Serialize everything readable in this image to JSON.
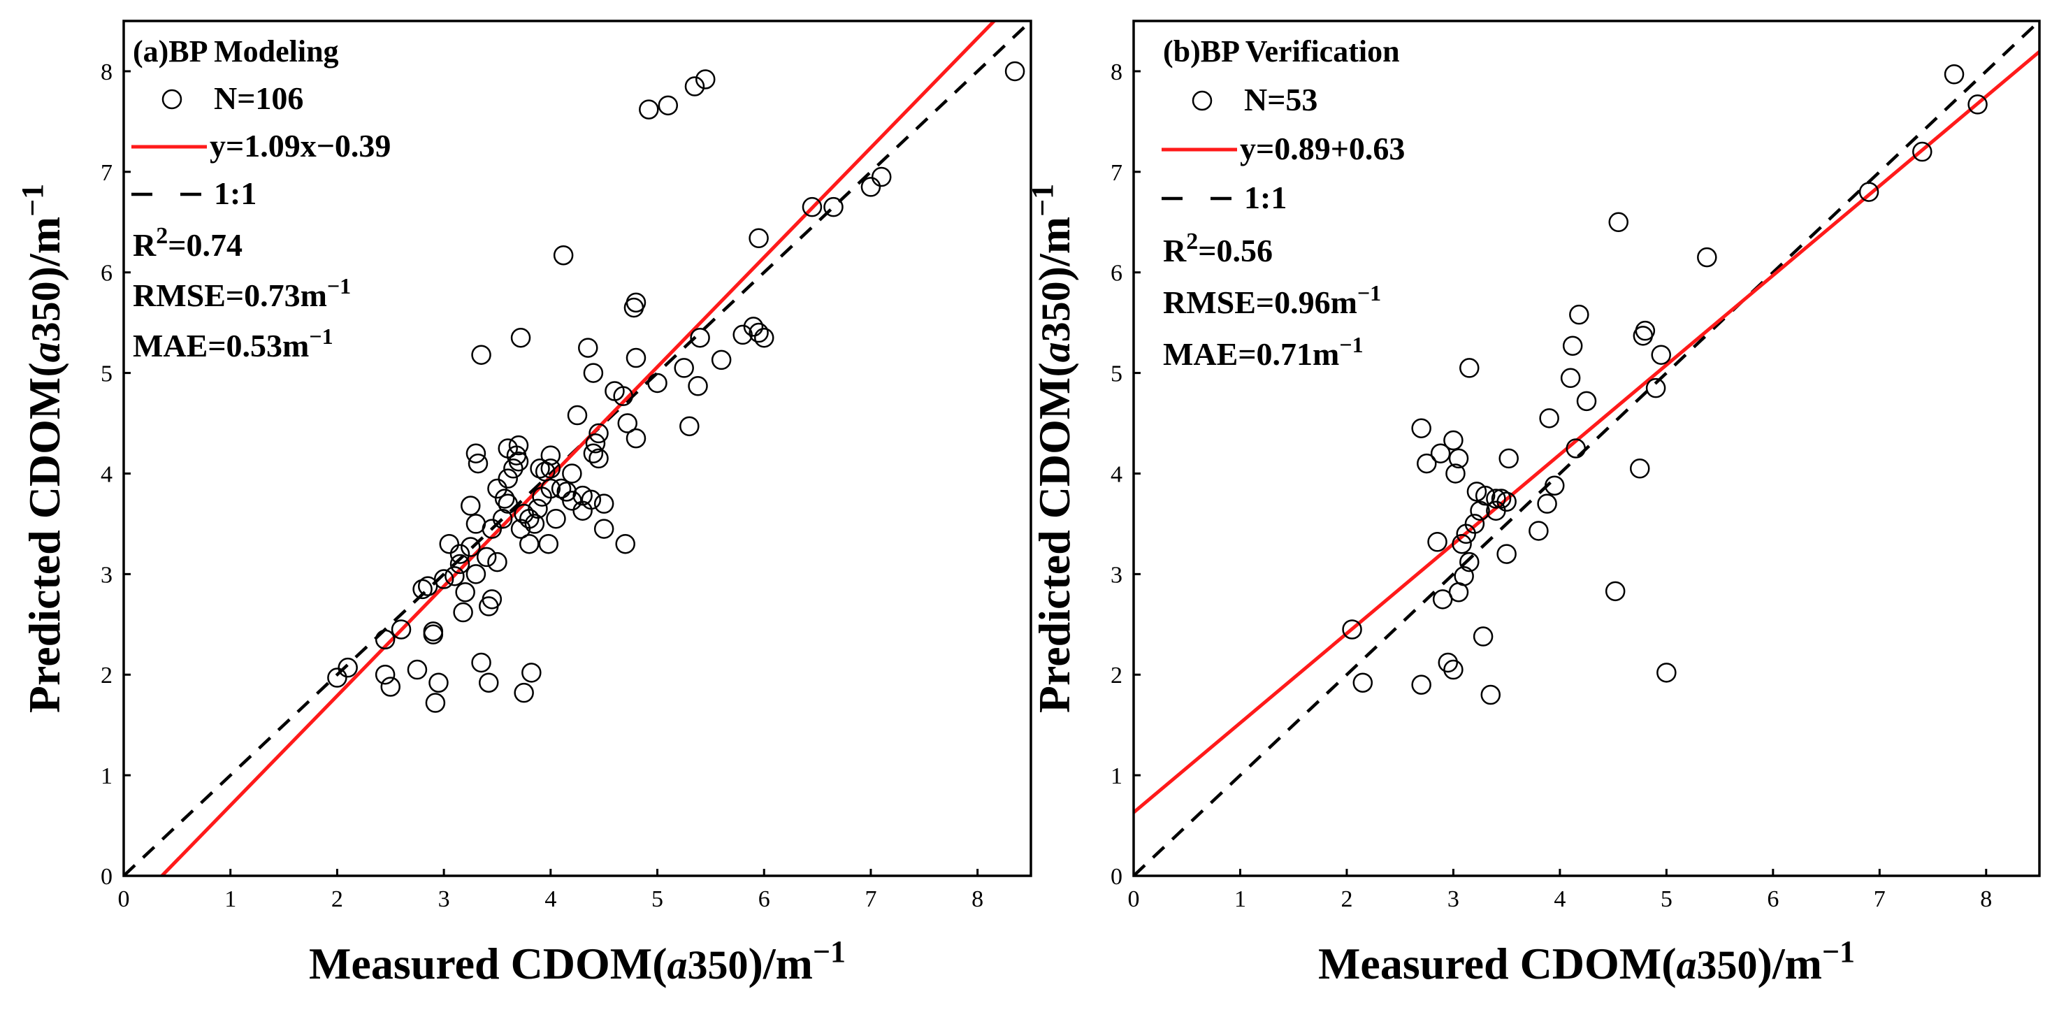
{
  "chart_data": [
    {
      "type": "scatter",
      "panel_label": "(a)BP Modeling",
      "xlabel": "Measured CDOM(a350)/m⁻¹",
      "ylabel": "Predicted CDOM(a350)/m⁻¹",
      "xlabel_parts": {
        "pre": "Measured CDOM(",
        "ital": "a",
        "num": "350",
        "post": ")/m",
        "sup": "−1"
      },
      "ylabel_parts": {
        "pre": "Predicted CDOM(",
        "ital": "a",
        "num": "350",
        "post": ")/m",
        "sup": "−1"
      },
      "xlim": [
        0,
        8.5
      ],
      "ylim": [
        0,
        8.5
      ],
      "xticks": [
        0,
        1,
        2,
        3,
        4,
        5,
        6,
        7,
        8
      ],
      "yticks": [
        0,
        1,
        2,
        3,
        4,
        5,
        6,
        7,
        8
      ],
      "legend": {
        "points": "N=106",
        "fit": "y=1.09x−0.39",
        "identity": "1:1"
      },
      "stats": {
        "r2_base": "R",
        "r2_sup": "2",
        "r2_val": "=0.74",
        "rmse_base": "RMSE=0.73m",
        "rmse_sup": "−1",
        "mae_base": "MAE=0.53m",
        "mae_sup": "−1"
      },
      "fit": {
        "slope": 1.09,
        "intercept": -0.39
      },
      "colors": {
        "fit": "#ff1a1a",
        "identity": "#000000",
        "marker": "#000000"
      },
      "points": [
        [
          2.0,
          1.97
        ],
        [
          2.1,
          2.07
        ],
        [
          2.45,
          2.35
        ],
        [
          2.45,
          2.0
        ],
        [
          2.5,
          1.88
        ],
        [
          2.6,
          2.45
        ],
        [
          2.75,
          2.05
        ],
        [
          2.8,
          2.85
        ],
        [
          2.9,
          2.4
        ],
        [
          2.9,
          2.43
        ],
        [
          2.92,
          1.72
        ],
        [
          2.95,
          1.92
        ],
        [
          3.0,
          2.95
        ],
        [
          3.05,
          3.3
        ],
        [
          3.1,
          2.98
        ],
        [
          3.15,
          3.1
        ],
        [
          3.18,
          2.62
        ],
        [
          3.2,
          2.82
        ],
        [
          3.25,
          3.27
        ],
        [
          3.25,
          3.68
        ],
        [
          3.3,
          4.2
        ],
        [
          3.32,
          4.1
        ],
        [
          3.3,
          3.0
        ],
        [
          3.35,
          2.12
        ],
        [
          3.4,
          3.17
        ],
        [
          3.35,
          5.18
        ],
        [
          3.42,
          1.92
        ],
        [
          3.42,
          2.68
        ],
        [
          3.45,
          2.75
        ],
        [
          3.45,
          3.45
        ],
        [
          3.5,
          3.12
        ],
        [
          3.55,
          3.55
        ],
        [
          3.57,
          3.75
        ],
        [
          3.6,
          4.25
        ],
        [
          3.6,
          3.95
        ],
        [
          3.65,
          4.05
        ],
        [
          3.7,
          4.28
        ],
        [
          3.68,
          4.18
        ],
        [
          3.7,
          4.12
        ],
        [
          3.72,
          5.35
        ],
        [
          3.72,
          3.45
        ],
        [
          3.75,
          1.82
        ],
        [
          3.75,
          3.6
        ],
        [
          3.8,
          3.3
        ],
        [
          3.82,
          2.02
        ],
        [
          3.85,
          3.5
        ],
        [
          3.88,
          3.65
        ],
        [
          3.9,
          4.05
        ],
        [
          3.92,
          3.77
        ],
        [
          3.95,
          4.02
        ],
        [
          3.98,
          3.3
        ],
        [
          4.0,
          3.85
        ],
        [
          4.0,
          4.18
        ],
        [
          4.05,
          3.55
        ],
        [
          4.1,
          3.85
        ],
        [
          4.12,
          6.17
        ],
        [
          4.15,
          3.82
        ],
        [
          4.2,
          3.73
        ],
        [
          4.25,
          4.58
        ],
        [
          4.3,
          3.63
        ],
        [
          4.3,
          3.78
        ],
        [
          4.35,
          5.25
        ],
        [
          4.38,
          3.74
        ],
        [
          4.4,
          5.0
        ],
        [
          4.42,
          4.3
        ],
        [
          4.45,
          4.15
        ],
        [
          4.45,
          4.4
        ],
        [
          4.5,
          3.45
        ],
        [
          4.5,
          3.7
        ],
        [
          4.6,
          4.82
        ],
        [
          4.68,
          4.77
        ],
        [
          4.7,
          3.3
        ],
        [
          4.72,
          4.5
        ],
        [
          4.78,
          5.65
        ],
        [
          4.8,
          5.7
        ],
        [
          4.8,
          4.35
        ],
        [
          4.8,
          5.15
        ],
        [
          4.92,
          7.62
        ],
        [
          5.0,
          4.9
        ],
        [
          5.1,
          7.66
        ],
        [
          5.25,
          5.05
        ],
        [
          5.3,
          4.47
        ],
        [
          5.35,
          7.85
        ],
        [
          5.38,
          4.87
        ],
        [
          5.4,
          5.35
        ],
        [
          5.45,
          7.92
        ],
        [
          5.6,
          5.13
        ],
        [
          5.8,
          5.38
        ],
        [
          5.9,
          5.46
        ],
        [
          5.95,
          6.34
        ],
        [
          5.95,
          5.4
        ],
        [
          6.0,
          5.35
        ],
        [
          6.45,
          6.65
        ],
        [
          6.65,
          6.65
        ],
        [
          7.0,
          6.85
        ],
        [
          7.1,
          6.95
        ],
        [
          8.35,
          8.0
        ],
        [
          3.15,
          3.2
        ],
        [
          3.5,
          3.85
        ],
        [
          3.8,
          3.55
        ],
        [
          4.0,
          4.05
        ],
        [
          4.4,
          4.2
        ],
        [
          3.3,
          3.5
        ],
        [
          2.85,
          2.88
        ],
        [
          3.6,
          3.7
        ],
        [
          4.2,
          4.0
        ]
      ]
    },
    {
      "type": "scatter",
      "panel_label": "(b)BP Verification",
      "xlabel": "Measured CDOM(a350)/m⁻¹",
      "ylabel": "Predicted CDOM(a350)/m⁻¹",
      "xlabel_parts": {
        "pre": "Measured CDOM(",
        "ital": "a",
        "num": "350",
        "post": ")/m",
        "sup": "−1"
      },
      "ylabel_parts": {
        "pre": "Predicted CDOM(",
        "ital": "a",
        "num": "350",
        "post": ")/m",
        "sup": "−1"
      },
      "xlim": [
        0,
        8.5
      ],
      "ylim": [
        0,
        8.5
      ],
      "xticks": [
        0,
        1,
        2,
        3,
        4,
        5,
        6,
        7,
        8
      ],
      "yticks": [
        0,
        1,
        2,
        3,
        4,
        5,
        6,
        7,
        8
      ],
      "legend": {
        "points": "N=53",
        "fit": "y=0.89+0.63",
        "identity": "1:1"
      },
      "stats": {
        "r2_base": "R",
        "r2_sup": "2",
        "r2_val": "=0.56",
        "rmse_base": "RMSE=0.96m",
        "rmse_sup": "−1",
        "mae_base": "MAE=0.71m",
        "mae_sup": "−1"
      },
      "fit": {
        "slope": 0.89,
        "intercept": 0.63
      },
      "colors": {
        "fit": "#ff1a1a",
        "identity": "#000000",
        "marker": "#000000"
      },
      "points": [
        [
          2.05,
          2.45
        ],
        [
          2.15,
          1.92
        ],
        [
          2.7,
          1.9
        ],
        [
          2.7,
          4.45
        ],
        [
          2.75,
          4.1
        ],
        [
          2.85,
          3.32
        ],
        [
          2.88,
          4.2
        ],
        [
          2.9,
          2.75
        ],
        [
          2.95,
          2.12
        ],
        [
          3.0,
          2.05
        ],
        [
          3.0,
          4.33
        ],
        [
          3.02,
          4.0
        ],
        [
          3.05,
          4.15
        ],
        [
          3.05,
          2.82
        ],
        [
          3.08,
          3.3
        ],
        [
          3.1,
          2.98
        ],
        [
          3.15,
          5.05
        ],
        [
          3.15,
          3.12
        ],
        [
          3.2,
          3.5
        ],
        [
          3.22,
          3.82
        ],
        [
          3.25,
          3.63
        ],
        [
          3.28,
          2.38
        ],
        [
          3.35,
          1.8
        ],
        [
          3.4,
          3.63
        ],
        [
          3.45,
          3.75
        ],
        [
          3.5,
          3.72
        ],
        [
          3.5,
          3.2
        ],
        [
          3.52,
          4.15
        ],
        [
          3.8,
          3.43
        ],
        [
          3.88,
          3.7
        ],
        [
          3.9,
          4.55
        ],
        [
          3.95,
          3.88
        ],
        [
          4.1,
          4.95
        ],
        [
          4.12,
          5.27
        ],
        [
          4.15,
          4.25
        ],
        [
          4.18,
          5.58
        ],
        [
          4.25,
          4.72
        ],
        [
          4.52,
          2.83
        ],
        [
          4.55,
          6.5
        ],
        [
          4.75,
          4.05
        ],
        [
          4.78,
          5.37
        ],
        [
          4.8,
          5.42
        ],
        [
          4.9,
          4.85
        ],
        [
          4.95,
          5.18
        ],
        [
          5.0,
          2.02
        ],
        [
          5.38,
          6.15
        ],
        [
          6.9,
          6.8
        ],
        [
          7.4,
          7.2
        ],
        [
          7.7,
          7.97
        ],
        [
          7.92,
          7.67
        ],
        [
          3.12,
          3.4
        ],
        [
          3.3,
          3.78
        ],
        [
          3.4,
          3.75
        ]
      ]
    }
  ]
}
